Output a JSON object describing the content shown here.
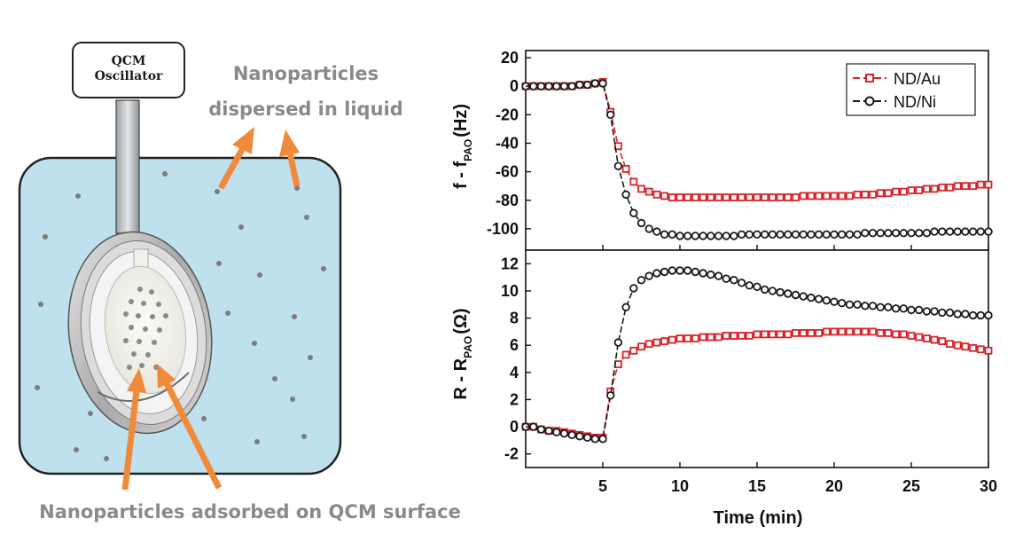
{
  "schematic": {
    "oscillator_label_line1": "QCM",
    "oscillator_label_line2": "Oscillator",
    "dispersed_label_line1": "Nanoparticles",
    "dispersed_label_line2": "dispersed in liquid",
    "adsorbed_label": "Nanoparticles adsorbed on QCM surface",
    "colors": {
      "liquid": "#bfe1ee",
      "arrow": "#ee8a3a",
      "label": "#8a8a8a"
    }
  },
  "chart_data": [
    {
      "type": "line",
      "panel": "top",
      "ylabel_main": "f - f",
      "ylabel_sub": "PAO",
      "ylabel_unit": "(Hz)",
      "xlim": [
        0,
        30
      ],
      "ylim": [
        -115,
        25
      ],
      "yticks": [
        20,
        0,
        -20,
        -40,
        -60,
        -80,
        -100
      ],
      "legend": {
        "placement": "top-right"
      },
      "series": [
        {
          "name": "ND/Au",
          "color": "#d9232a",
          "marker": "square",
          "x": [
            0,
            0.5,
            1,
            1.5,
            2,
            2.5,
            3,
            3.5,
            4,
            4.5,
            5,
            5.5,
            6,
            6.5,
            7,
            7.5,
            8,
            8.5,
            9,
            9.5,
            10,
            10.5,
            11,
            11.5,
            12,
            12.5,
            13,
            13.5,
            14,
            14.5,
            15,
            15.5,
            16,
            16.5,
            17,
            17.5,
            18,
            18.5,
            19,
            19.5,
            20,
            20.5,
            21,
            21.5,
            22,
            22.5,
            23,
            23.5,
            24,
            24.5,
            25,
            25.5,
            26,
            26.5,
            27,
            27.5,
            28,
            28.5,
            29,
            29.5,
            30
          ],
          "y": [
            0,
            0,
            0,
            0,
            0,
            0,
            0,
            1,
            1,
            2,
            3,
            -18,
            -42,
            -58,
            -67,
            -72,
            -74,
            -76,
            -77,
            -78,
            -78,
            -78,
            -78,
            -78,
            -78,
            -78,
            -78,
            -78,
            -78,
            -78,
            -78,
            -78,
            -78,
            -78,
            -78,
            -78,
            -77,
            -77,
            -77,
            -77,
            -77,
            -77,
            -77,
            -76,
            -76,
            -76,
            -75,
            -75,
            -74,
            -74,
            -73,
            -73,
            -72,
            -72,
            -71,
            -71,
            -70,
            -70,
            -70,
            -69,
            -69
          ]
        },
        {
          "name": "ND/Ni",
          "color": "#1a1a1a",
          "marker": "circle",
          "x": [
            0,
            0.5,
            1,
            1.5,
            2,
            2.5,
            3,
            3.5,
            4,
            4.5,
            5,
            5.5,
            6,
            6.5,
            7,
            7.5,
            8,
            8.5,
            9,
            9.5,
            10,
            10.5,
            11,
            11.5,
            12,
            12.5,
            13,
            13.5,
            14,
            14.5,
            15,
            15.5,
            16,
            16.5,
            17,
            17.5,
            18,
            18.5,
            19,
            19.5,
            20,
            20.5,
            21,
            21.5,
            22,
            22.5,
            23,
            23.5,
            24,
            24.5,
            25,
            25.5,
            26,
            26.5,
            27,
            27.5,
            28,
            28.5,
            29,
            29.5,
            30
          ],
          "y": [
            0,
            0,
            0,
            0,
            0,
            0,
            0,
            1,
            1,
            2,
            2,
            -20,
            -56,
            -76,
            -89,
            -96,
            -100,
            -102,
            -104,
            -104,
            -105,
            -105,
            -105,
            -105,
            -105,
            -105,
            -105,
            -105,
            -104,
            -104,
            -104,
            -104,
            -104,
            -104,
            -104,
            -104,
            -104,
            -104,
            -104,
            -104,
            -104,
            -104,
            -104,
            -104,
            -103,
            -103,
            -103,
            -103,
            -103,
            -103,
            -103,
            -103,
            -103,
            -102,
            -102,
            -102,
            -102,
            -102,
            -102,
            -102,
            -102
          ]
        }
      ]
    },
    {
      "type": "line",
      "panel": "bottom",
      "ylabel_main": "R - R",
      "ylabel_sub": "PAO",
      "ylabel_unit": "(Ω)",
      "xlabel": "Time (min)",
      "xlim": [
        0,
        30
      ],
      "xticks": [
        5,
        10,
        15,
        20,
        25,
        30
      ],
      "ylim": [
        -3,
        13
      ],
      "yticks": [
        12,
        10,
        8,
        6,
        4,
        2,
        0,
        -2
      ],
      "series": [
        {
          "name": "ND/Au",
          "color": "#d9232a",
          "marker": "square",
          "x": [
            0,
            0.5,
            1,
            1.5,
            2,
            2.5,
            3,
            3.5,
            4,
            4.5,
            5,
            5.5,
            6,
            6.5,
            7,
            7.5,
            8,
            8.5,
            9,
            9.5,
            10,
            10.5,
            11,
            11.5,
            12,
            12.5,
            13,
            13.5,
            14,
            14.5,
            15,
            15.5,
            16,
            16.5,
            17,
            17.5,
            18,
            18.5,
            19,
            19.5,
            20,
            20.5,
            21,
            21.5,
            22,
            22.5,
            23,
            23.5,
            24,
            24.5,
            25,
            25.5,
            26,
            26.5,
            27,
            27.5,
            28,
            28.5,
            29,
            29.5,
            30
          ],
          "y": [
            0,
            0,
            -0.2,
            -0.3,
            -0.3,
            -0.4,
            -0.5,
            -0.6,
            -0.7,
            -0.8,
            -0.8,
            2.6,
            4.6,
            5.3,
            5.6,
            5.9,
            6.1,
            6.2,
            6.3,
            6.4,
            6.5,
            6.5,
            6.5,
            6.6,
            6.6,
            6.6,
            6.7,
            6.7,
            6.7,
            6.7,
            6.8,
            6.8,
            6.8,
            6.8,
            6.8,
            6.9,
            6.9,
            6.9,
            6.9,
            7.0,
            7.0,
            7.0,
            7.0,
            7.0,
            7.0,
            7.0,
            6.9,
            6.9,
            6.8,
            6.8,
            6.7,
            6.6,
            6.5,
            6.4,
            6.3,
            6.1,
            6.0,
            5.9,
            5.8,
            5.7,
            5.6
          ]
        },
        {
          "name": "ND/Ni",
          "color": "#1a1a1a",
          "marker": "circle",
          "x": [
            0,
            0.5,
            1,
            1.5,
            2,
            2.5,
            3,
            3.5,
            4,
            4.5,
            5,
            5.5,
            6,
            6.5,
            7,
            7.5,
            8,
            8.5,
            9,
            9.5,
            10,
            10.5,
            11,
            11.5,
            12,
            12.5,
            13,
            13.5,
            14,
            14.5,
            15,
            15.5,
            16,
            16.5,
            17,
            17.5,
            18,
            18.5,
            19,
            19.5,
            20,
            20.5,
            21,
            21.5,
            22,
            22.5,
            23,
            23.5,
            24,
            24.5,
            25,
            25.5,
            26,
            26.5,
            27,
            27.5,
            28,
            28.5,
            29,
            29.5,
            30
          ],
          "y": [
            0,
            0,
            -0.2,
            -0.3,
            -0.4,
            -0.5,
            -0.6,
            -0.7,
            -0.8,
            -0.9,
            -0.9,
            2.3,
            6.2,
            8.8,
            10.2,
            10.8,
            11.1,
            11.3,
            11.4,
            11.5,
            11.5,
            11.5,
            11.4,
            11.3,
            11.2,
            11.1,
            10.9,
            10.8,
            10.6,
            10.4,
            10.3,
            10.1,
            10.0,
            9.9,
            9.8,
            9.7,
            9.6,
            9.5,
            9.4,
            9.3,
            9.2,
            9.1,
            9.0,
            9.0,
            8.9,
            8.9,
            8.8,
            8.8,
            8.7,
            8.7,
            8.6,
            8.6,
            8.5,
            8.5,
            8.4,
            8.4,
            8.3,
            8.3,
            8.2,
            8.2,
            8.2
          ]
        }
      ]
    }
  ]
}
